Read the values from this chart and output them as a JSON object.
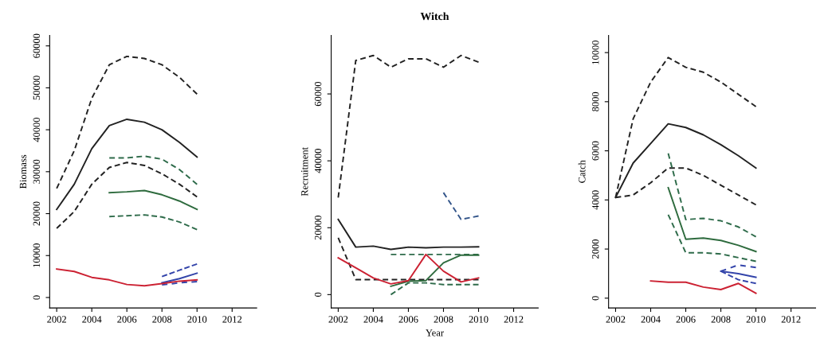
{
  "chart_data": [
    {
      "type": "line",
      "ylabel": "Biomass",
      "xlim": [
        2001.6,
        2013.4
      ],
      "xticks": [
        2002,
        2004,
        2006,
        2008,
        2010,
        2012
      ],
      "ylim": [
        -2500,
        62500
      ],
      "yticks": [
        0,
        10000,
        20000,
        30000,
        40000,
        50000,
        60000
      ],
      "grid": false,
      "x": [
        2002,
        2003,
        2004,
        2005,
        2006,
        2007,
        2008,
        2009,
        2010
      ],
      "series": [
        {
          "color": "#222222",
          "line_style": "dashed",
          "values": [
            26000,
            35000,
            47500,
            55500,
            57500,
            57000,
            55500,
            52500,
            48500
          ]
        },
        {
          "color": "#222222",
          "line_style": "solid",
          "values": [
            21000,
            27000,
            35500,
            41000,
            42500,
            41800,
            40000,
            37000,
            33500
          ]
        },
        {
          "color": "#222222",
          "line_style": "dashed",
          "values": [
            16500,
            20500,
            27000,
            31000,
            32200,
            31500,
            29500,
            27000,
            24000
          ]
        },
        {
          "color": "#2e6b4a",
          "line_style": "dashed",
          "x": [
            2005,
            2006,
            2007,
            2008,
            2009,
            2010
          ],
          "values": [
            33300,
            33300,
            33700,
            33000,
            30500,
            27000
          ]
        },
        {
          "color": "#2e6b3e",
          "line_style": "solid",
          "x": [
            2005,
            2006,
            2007,
            2008,
            2009,
            2010
          ],
          "values": [
            25000,
            25200,
            25500,
            24500,
            23000,
            21000
          ]
        },
        {
          "color": "#2e6b4a",
          "line_style": "dashed",
          "x": [
            2005,
            2006,
            2007,
            2008,
            2009,
            2010
          ],
          "values": [
            19300,
            19500,
            19700,
            19200,
            18000,
            16200
          ]
        },
        {
          "color": "#3344aa",
          "line_style": "dashed",
          "x": [
            2008,
            2009,
            2010
          ],
          "values": [
            5000,
            6500,
            8000
          ]
        },
        {
          "color": "#3344aa",
          "line_style": "solid",
          "x": [
            2008,
            2009,
            2010
          ],
          "values": [
            3500,
            4500,
            5800
          ]
        },
        {
          "color": "#3344aa",
          "line_style": "dashed",
          "x": [
            2008,
            2009,
            2010
          ],
          "values": [
            3000,
            3500,
            3800
          ]
        },
        {
          "color": "#cc2233",
          "line_style": "solid",
          "values": [
            6800,
            6200,
            4800,
            4200,
            3100,
            2800,
            3300,
            3900,
            4200
          ]
        }
      ]
    },
    {
      "type": "line",
      "title": "Witch",
      "xlabel": "Year",
      "ylabel": "Recruitment",
      "xlim": [
        2001.6,
        2013.4
      ],
      "xticks": [
        2002,
        2004,
        2006,
        2008,
        2010,
        2012
      ],
      "ylim": [
        -4000,
        77500
      ],
      "yticks": [
        0,
        20000,
        40000,
        60000
      ],
      "grid": false,
      "x": [
        2002,
        2003,
        2004,
        2005,
        2006,
        2007,
        2008,
        2009,
        2010
      ],
      "series": [
        {
          "color": "#222222",
          "line_style": "dashed",
          "values": [
            29000,
            70000,
            71500,
            68000,
            70500,
            70500,
            68000,
            71500,
            69500
          ]
        },
        {
          "color": "#222222",
          "line_style": "solid",
          "values": [
            22500,
            14200,
            14500,
            13500,
            14200,
            14000,
            14200,
            14200,
            14300
          ]
        },
        {
          "color": "#222222",
          "line_style": "dashed",
          "values": [
            17000,
            4500,
            4500,
            4500,
            4500,
            4500,
            4500,
            4500,
            4500
          ]
        },
        {
          "color": "#2e6b4a",
          "line_style": "dashed",
          "x": [
            2005,
            2006,
            2007,
            2008,
            2009,
            2010
          ],
          "values": [
            12000,
            12000,
            12000,
            12000,
            12000,
            12000
          ]
        },
        {
          "color": "#2e6b3e",
          "line_style": "solid",
          "x": [
            2005,
            2006,
            2007,
            2008,
            2009,
            2010
          ],
          "values": [
            2500,
            4000,
            4200,
            9500,
            11800,
            11800
          ]
        },
        {
          "color": "#2e6b4a",
          "line_style": "dashed",
          "x": [
            2005,
            2006,
            2007,
            2008,
            2009,
            2010
          ],
          "values": [
            0,
            3500,
            3500,
            3000,
            3000,
            3000
          ]
        },
        {
          "color": "#33558a",
          "line_style": "dashed",
          "x": [
            2008,
            2009,
            2010
          ],
          "values": [
            30500,
            22500,
            23500
          ]
        },
        {
          "color": "#cc2233",
          "line_style": "solid",
          "values": [
            11000,
            8000,
            5000,
            3200,
            4200,
            12000,
            7000,
            3800,
            5000
          ]
        }
      ]
    },
    {
      "type": "line",
      "ylabel": "Catch",
      "xlim": [
        2001.6,
        2013.4
      ],
      "xticks": [
        2002,
        2004,
        2006,
        2008,
        2010,
        2012
      ],
      "ylim": [
        -400,
        10700
      ],
      "yticks": [
        0,
        2000,
        4000,
        6000,
        8000,
        10000
      ],
      "grid": false,
      "x": [
        2002,
        2003,
        2004,
        2005,
        2006,
        2007,
        2008,
        2009,
        2010
      ],
      "series": [
        {
          "color": "#222222",
          "line_style": "dashed",
          "values": [
            4100,
            7300,
            8800,
            9800,
            9400,
            9200,
            8800,
            8300,
            7800
          ]
        },
        {
          "color": "#222222",
          "line_style": "solid",
          "values": [
            4100,
            5500,
            6300,
            7100,
            6950,
            6650,
            6250,
            5800,
            5300
          ]
        },
        {
          "color": "#222222",
          "line_style": "dashed",
          "values": [
            4100,
            4200,
            4700,
            5300,
            5300,
            5000,
            4600,
            4200,
            3800
          ]
        },
        {
          "color": "#2e6b4a",
          "line_style": "dashed",
          "x": [
            2005,
            2006,
            2007,
            2008,
            2009,
            2010
          ],
          "values": [
            5900,
            3200,
            3250,
            3150,
            2900,
            2500
          ]
        },
        {
          "color": "#2e6b3e",
          "line_style": "solid",
          "x": [
            2005,
            2006,
            2007,
            2008,
            2009,
            2010
          ],
          "values": [
            4500,
            2400,
            2450,
            2350,
            2150,
            1900
          ]
        },
        {
          "color": "#2e6b4a",
          "line_style": "dashed",
          "x": [
            2005,
            2006,
            2007,
            2008,
            2009,
            2010
          ],
          "values": [
            3400,
            1850,
            1850,
            1800,
            1650,
            1500
          ]
        },
        {
          "color": "#3344aa",
          "line_style": "dashed",
          "x": [
            2008,
            2009,
            2010
          ],
          "values": [
            1100,
            1350,
            1250
          ]
        },
        {
          "color": "#3344aa",
          "line_style": "solid",
          "x": [
            2008,
            2009,
            2010
          ],
          "values": [
            1100,
            1000,
            850
          ]
        },
        {
          "color": "#3344aa",
          "line_style": "dashed",
          "x": [
            2008,
            2009,
            2010
          ],
          "values": [
            1100,
            750,
            600
          ]
        },
        {
          "color": "#cc2233",
          "line_style": "solid",
          "x": [
            2004,
            2005,
            2006,
            2007,
            2008,
            2009,
            2010
          ],
          "values": [
            700,
            650,
            650,
            450,
            350,
            600,
            200
          ]
        }
      ]
    }
  ]
}
